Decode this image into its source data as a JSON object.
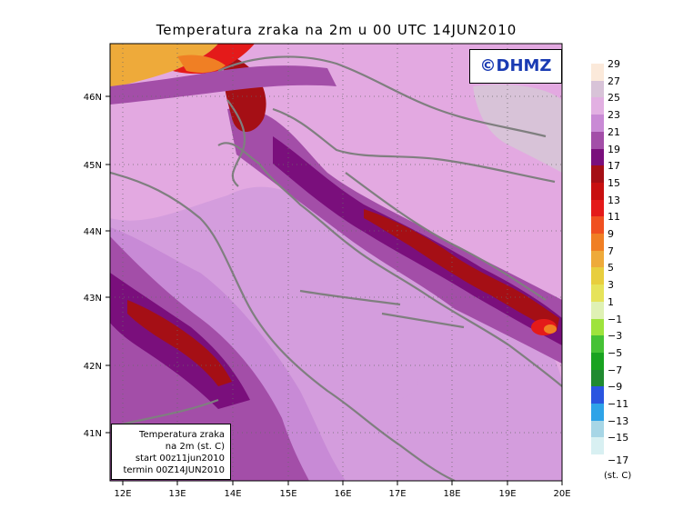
{
  "title": "Temperatura zraka na 2m u 00 UTC 14JUN2010",
  "logo": "©DHMZ",
  "info_box": {
    "line1": "Temperatura zraka",
    "line2": "na 2m (st. C)",
    "line3": "start 00z11jun2010",
    "line4": "termin 00Z14JUN2010"
  },
  "lat_labels": [
    "46N",
    "45N",
    "44N",
    "43N",
    "42N",
    "41N"
  ],
  "lon_labels": [
    "12E",
    "13E",
    "14E",
    "15E",
    "16E",
    "17E",
    "18E",
    "19E",
    "20E"
  ],
  "legend": {
    "unit": "(st. C)",
    "labels": [
      "29",
      "27",
      "25",
      "23",
      "21",
      "19",
      "17",
      "15",
      "13",
      "11",
      "9",
      "7",
      "5",
      "3",
      "1",
      "−1",
      "−3",
      "−5",
      "−7",
      "−9",
      "−11",
      "−13",
      "−15"
    ],
    "bottom_label": "−17",
    "colors": [
      "#fbe9da",
      "#d8c3d8",
      "#e2b0e2",
      "#c98ad5",
      "#a34ea8",
      "#7a0f7c",
      "#a50f15",
      "#c81010",
      "#e41a1a",
      "#f05020",
      "#f07f24",
      "#eeaa3a",
      "#e8ce3e",
      "#e6e35a",
      "#dff1b4",
      "#9ee33c",
      "#45c235",
      "#19a320",
      "#1f8a30",
      "#2a55e0",
      "#2ea3e8",
      "#a7d6e6",
      "#d8f0f2"
    ]
  },
  "field_colors": {
    "warm_bg": "#e3a9e1",
    "mid": "#c88ad6",
    "dark": "#a34ea8",
    "darker": "#7a0f7c",
    "red": "#a50f15",
    "hot": "#e41a1a",
    "orange": "#f07f24",
    "yellow": "#eeaa3a",
    "coast": "#7f7f7f"
  }
}
